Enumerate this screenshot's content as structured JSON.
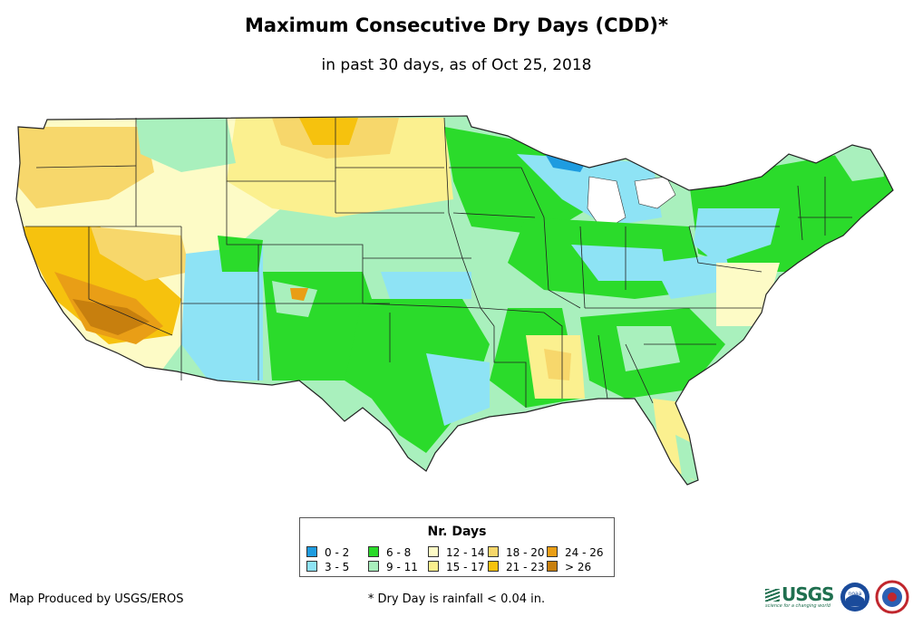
{
  "title": "Maximum Consecutive Dry Days (CDD)*",
  "subtitle": "in past 30 days, as of Oct 25, 2018",
  "legend": {
    "title": "Nr. Days",
    "items": [
      {
        "label": "0 - 2",
        "color": "#1e9ce0"
      },
      {
        "label": "3 - 5",
        "color": "#8ee3f5"
      },
      {
        "label": "6 - 8",
        "color": "#2bdb2b"
      },
      {
        "label": "9 - 11",
        "color": "#a9f0bd"
      },
      {
        "label": "12 - 14",
        "color": "#fdfbc6"
      },
      {
        "label": "15 - 17",
        "color": "#fbf08f"
      },
      {
        "label": "18 - 20",
        "color": "#f7d76b"
      },
      {
        "label": "21 - 23",
        "color": "#f6c20e"
      },
      {
        "label": "24 - 26",
        "color": "#e99e16"
      },
      {
        "label": "> 26",
        "color": "#c77f0e"
      }
    ]
  },
  "credit": "Map Produced by USGS/EROS",
  "footnote": "* Dry Day is rainfall < 0.04 in.",
  "logos": {
    "usgs": "USGS",
    "usgs_tagline": "science for a changing world",
    "noaa": "noaa",
    "nws_icon": "nws-logo-icon"
  }
}
